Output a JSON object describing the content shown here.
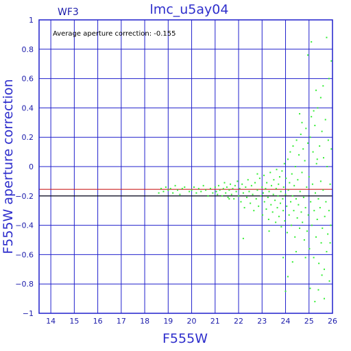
{
  "chart_data": {
    "type": "scatter",
    "title": "lmc_u5ay04",
    "chip_label": "WF3",
    "annotation": "Average aperture correction: -0.155",
    "xlabel": "F555W",
    "ylabel": "F555W aperture correction",
    "xlim": [
      13.5,
      26
    ],
    "ylim": [
      -1,
      1
    ],
    "xticks": [
      14,
      15,
      16,
      17,
      18,
      19,
      20,
      21,
      22,
      23,
      24,
      25,
      26
    ],
    "xtick_labels": [
      "14",
      "15",
      "16",
      "17",
      "18",
      "19",
      "20",
      "21",
      "22",
      "23",
      "24",
      "25",
      "26"
    ],
    "yticks": [
      -1,
      -0.8,
      -0.6,
      -0.4,
      -0.2,
      0,
      0.2,
      0.4,
      0.6,
      0.8,
      1
    ],
    "ytick_labels": [
      "−1",
      "−0.8",
      "−0.6",
      "−0.4",
      "−0.2",
      "0",
      "0.2",
      "0.4",
      "0.6",
      "0.8",
      "1"
    ],
    "grid": true,
    "reference_lines": [
      {
        "y": -0.155,
        "color": "#cc2020"
      },
      {
        "y": -0.2,
        "color": "#000000"
      }
    ],
    "colors": {
      "points": "#33ee33",
      "grid": "#1f1fcc",
      "frame": "#1f1fcc",
      "text": "#1a1aaa"
    },
    "points": [
      [
        18.6,
        -0.18
      ],
      [
        18.7,
        -0.15
      ],
      [
        18.8,
        -0.17
      ],
      [
        18.9,
        -0.14
      ],
      [
        19.0,
        -0.16
      ],
      [
        19.1,
        -0.15
      ],
      [
        19.2,
        -0.18
      ],
      [
        19.3,
        -0.13
      ],
      [
        19.4,
        -0.16
      ],
      [
        19.5,
        -0.19
      ],
      [
        19.6,
        -0.15
      ],
      [
        19.7,
        -0.14
      ],
      [
        19.9,
        -0.17
      ],
      [
        20.0,
        -0.16
      ],
      [
        20.1,
        -0.14
      ],
      [
        20.2,
        -0.18
      ],
      [
        20.3,
        -0.15
      ],
      [
        20.4,
        -0.17
      ],
      [
        20.5,
        -0.13
      ],
      [
        20.6,
        -0.16
      ],
      [
        20.7,
        -0.2
      ],
      [
        20.8,
        -0.15
      ],
      [
        20.9,
        -0.18
      ],
      [
        21.0,
        -0.14
      ],
      [
        21.05,
        -0.17
      ],
      [
        21.1,
        -0.19
      ],
      [
        21.15,
        -0.13
      ],
      [
        21.2,
        -0.16
      ],
      [
        21.3,
        -0.2
      ],
      [
        21.35,
        -0.15
      ],
      [
        21.4,
        -0.11
      ],
      [
        21.45,
        -0.18
      ],
      [
        21.5,
        -0.14
      ],
      [
        21.55,
        -0.21
      ],
      [
        21.6,
        -0.16
      ],
      [
        21.65,
        -0.12
      ],
      [
        21.7,
        -0.19
      ],
      [
        21.75,
        -0.15
      ],
      [
        21.8,
        -0.22
      ],
      [
        21.85,
        -0.13
      ],
      [
        21.9,
        -0.17
      ],
      [
        21.95,
        -0.1
      ],
      [
        22.0,
        -0.2
      ],
      [
        22.05,
        -0.15
      ],
      [
        22.1,
        -0.24
      ],
      [
        22.15,
        -0.12
      ],
      [
        22.2,
        -0.18
      ],
      [
        22.25,
        -0.28
      ],
      [
        22.3,
        -0.14
      ],
      [
        22.35,
        -0.21
      ],
      [
        22.4,
        -0.09
      ],
      [
        22.45,
        -0.17
      ],
      [
        22.5,
        -0.25
      ],
      [
        22.55,
        -0.13
      ],
      [
        22.6,
        -0.19
      ],
      [
        22.65,
        -0.3
      ],
      [
        22.7,
        -0.11
      ],
      [
        22.75,
        -0.22
      ],
      [
        22.8,
        -0.16
      ],
      [
        22.85,
        -0.27
      ],
      [
        22.9,
        -0.08
      ],
      [
        22.95,
        -0.2
      ],
      [
        23.0,
        -0.14
      ],
      [
        23.02,
        -0.33
      ],
      [
        23.05,
        -0.18
      ],
      [
        23.08,
        -0.06
      ],
      [
        23.1,
        -0.24
      ],
      [
        23.15,
        -0.15
      ],
      [
        23.18,
        -0.29
      ],
      [
        23.2,
        -0.11
      ],
      [
        23.25,
        -0.21
      ],
      [
        23.28,
        -0.36
      ],
      [
        23.3,
        -0.17
      ],
      [
        23.35,
        -0.04
      ],
      [
        23.38,
        -0.26
      ],
      [
        23.4,
        -0.13
      ],
      [
        23.45,
        -0.31
      ],
      [
        23.48,
        -0.19
      ],
      [
        23.5,
        -0.09
      ],
      [
        23.55,
        -0.23
      ],
      [
        23.58,
        -0.38
      ],
      [
        23.6,
        -0.15
      ],
      [
        23.62,
        -0.02
      ],
      [
        23.65,
        -0.28
      ],
      [
        23.68,
        -0.2
      ],
      [
        23.7,
        -0.12
      ],
      [
        23.72,
        -0.34
      ],
      [
        23.75,
        -0.07
      ],
      [
        23.78,
        -0.25
      ],
      [
        23.8,
        -0.17
      ],
      [
        23.82,
        -0.41
      ],
      [
        23.85,
        -0.03
      ],
      [
        23.88,
        -0.22
      ],
      [
        23.9,
        -0.3
      ],
      [
        23.92,
        -0.14
      ],
      [
        23.95,
        0.02
      ],
      [
        23.97,
        -0.37
      ],
      [
        24.0,
        -0.19
      ],
      [
        24.02,
        -0.08
      ],
      [
        24.05,
        -0.27
      ],
      [
        24.07,
        -0.45
      ],
      [
        24.1,
        0.05
      ],
      [
        24.12,
        -0.16
      ],
      [
        24.15,
        -0.33
      ],
      [
        24.17,
        -0.11
      ],
      [
        24.2,
        0.1
      ],
      [
        24.22,
        -0.24
      ],
      [
        24.25,
        -0.4
      ],
      [
        24.27,
        -0.05
      ],
      [
        24.3,
        -0.2
      ],
      [
        24.32,
        0.14
      ],
      [
        24.35,
        -0.3
      ],
      [
        24.37,
        -0.13
      ],
      [
        24.4,
        -0.48
      ],
      [
        24.42,
        0.0
      ],
      [
        24.45,
        -0.22
      ],
      [
        24.47,
        0.18
      ],
      [
        24.5,
        -0.35
      ],
      [
        24.52,
        -0.09
      ],
      [
        24.55,
        -0.26
      ],
      [
        24.57,
        0.08
      ],
      [
        24.6,
        -0.42
      ],
      [
        24.62,
        -0.17
      ],
      [
        24.65,
        0.22
      ],
      [
        24.67,
        -0.31
      ],
      [
        24.7,
        -0.04
      ],
      [
        24.72,
        -0.38
      ],
      [
        24.75,
        0.12
      ],
      [
        24.77,
        -0.21
      ],
      [
        24.8,
        -0.5
      ],
      [
        24.82,
        0.04
      ],
      [
        24.85,
        -0.28
      ],
      [
        24.87,
        0.26
      ],
      [
        24.9,
        -0.14
      ],
      [
        24.92,
        -0.44
      ],
      [
        24.95,
        0.16
      ],
      [
        24.97,
        -0.33
      ],
      [
        25.0,
        -0.07
      ],
      [
        25.02,
        -0.56
      ],
      [
        25.05,
        0.2
      ],
      [
        25.07,
        -0.24
      ],
      [
        25.1,
        0.34
      ],
      [
        25.12,
        -0.4
      ],
      [
        25.15,
        -0.12
      ],
      [
        25.17,
        0.1
      ],
      [
        25.2,
        -0.62
      ],
      [
        25.22,
        -0.3
      ],
      [
        25.25,
        0.28
      ],
      [
        25.27,
        -0.18
      ],
      [
        25.3,
        -0.48
      ],
      [
        25.32,
        0.02
      ],
      [
        25.35,
        -0.36
      ],
      [
        25.37,
        0.4
      ],
      [
        25.4,
        -0.22
      ],
      [
        25.42,
        -0.66
      ],
      [
        25.45,
        0.14
      ],
      [
        25.47,
        -0.28
      ],
      [
        25.5,
        -0.1
      ],
      [
        25.52,
        -0.52
      ],
      [
        25.55,
        0.24
      ],
      [
        25.57,
        -0.42
      ],
      [
        25.6,
        -0.16
      ],
      [
        25.62,
        0.06
      ],
      [
        25.65,
        -0.7
      ],
      [
        25.67,
        -0.34
      ],
      [
        25.7,
        0.32
      ],
      [
        25.72,
        -0.24
      ],
      [
        25.75,
        -0.58
      ],
      [
        25.77,
        0.0
      ],
      [
        25.8,
        -0.46
      ],
      [
        25.82,
        0.18
      ],
      [
        25.85,
        -0.3
      ],
      [
        25.87,
        -0.78
      ],
      [
        25.9,
        -0.12
      ],
      [
        25.92,
        -0.4
      ],
      [
        25.95,
        0.12
      ],
      [
        24.0,
        -0.85
      ],
      [
        24.1,
        -0.75
      ],
      [
        23.9,
        -0.62
      ],
      [
        25.05,
        -0.83
      ],
      [
        25.25,
        -0.92
      ],
      [
        25.4,
        -0.84
      ],
      [
        25.6,
        0.55
      ],
      [
        25.75,
        0.88
      ],
      [
        25.95,
        0.72
      ],
      [
        25.1,
        0.85
      ],
      [
        24.95,
        0.76
      ],
      [
        25.3,
        0.52
      ],
      [
        25.5,
        0.47
      ],
      [
        25.2,
        0.38
      ],
      [
        24.7,
        0.3
      ],
      [
        24.6,
        0.36
      ],
      [
        25.85,
        0.6
      ],
      [
        25.65,
        -0.9
      ],
      [
        24.3,
        -0.65
      ],
      [
        22.2,
        -0.49
      ],
      [
        21.6,
        -0.22
      ],
      [
        22.8,
        -0.05
      ],
      [
        23.3,
        -0.44
      ],
      [
        24.45,
        -0.58
      ],
      [
        24.85,
        -0.62
      ],
      [
        25.55,
        -0.74
      ],
      [
        25.9,
        -0.52
      ],
      [
        25.35,
        0.05
      ]
    ]
  }
}
